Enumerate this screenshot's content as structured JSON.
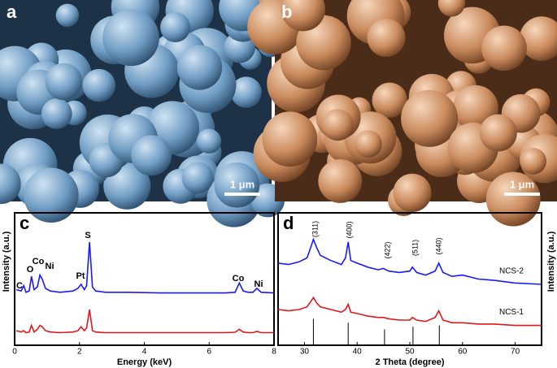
{
  "panels": [
    {
      "label": "a",
      "scale_bar": "1 μm"
    },
    {
      "label": "b",
      "scale_bar": "1 μm"
    }
  ],
  "chart_data": [
    {
      "type": "line",
      "panel_label": "c",
      "xlabel": "Energy (keV)",
      "ylabel": "Intensity (a.u.)",
      "xlim": [
        0,
        8
      ],
      "xticks": [
        0,
        2,
        4,
        6,
        8
      ],
      "ylim": [
        0,
        100
      ],
      "x": [
        0.05,
        0.2,
        0.28,
        0.35,
        0.45,
        0.52,
        0.6,
        0.7,
        0.78,
        0.85,
        0.95,
        1.1,
        1.4,
        1.8,
        1.95,
        2.05,
        2.15,
        2.22,
        2.31,
        2.4,
        2.5,
        2.8,
        3.5,
        4.5,
        5.5,
        6.5,
        6.8,
        6.93,
        7.05,
        7.2,
        7.35,
        7.47,
        7.6,
        8
      ],
      "series": [
        {
          "color": "#1a1aff",
          "values": [
            42,
            41,
            45,
            40,
            41,
            52,
            42,
            44,
            53,
            50,
            43,
            41,
            40,
            41,
            43,
            46,
            42,
            45,
            78,
            44,
            41,
            40,
            40,
            39.5,
            39.5,
            39.5,
            40,
            47,
            41,
            40,
            40,
            43,
            40,
            39.5
          ]
        },
        {
          "color": "#e0181c",
          "values": [
            11,
            10,
            11,
            9.5,
            10,
            15,
            10,
            12,
            15,
            14,
            11,
            10,
            9.5,
            10,
            11,
            14,
            11,
            13,
            27,
            11,
            10,
            9.5,
            9.5,
            9.5,
            9.5,
            9.5,
            9.8,
            12,
            10,
            9.5,
            9.5,
            10.5,
            9.5,
            9.5
          ]
        }
      ],
      "annotations": [
        "C",
        "O",
        "Co",
        "Ni",
        "Pt",
        "S",
        "Co",
        "Ni"
      ]
    },
    {
      "type": "line",
      "panel_label": "d",
      "xlabel": "2 Theta (degree)",
      "ylabel": "Intensity (a.u.)",
      "xlim": [
        25,
        75
      ],
      "xticks": [
        30,
        40,
        50,
        60,
        70
      ],
      "ylim": [
        0,
        100
      ],
      "x": [
        25,
        27,
        29,
        30.5,
        31.2,
        31.7,
        32.3,
        33,
        35,
        37,
        37.8,
        38.3,
        38.8,
        40,
        42,
        44,
        45,
        46,
        48,
        50,
        50.5,
        51.3,
        53,
        54.8,
        55.5,
        56.3,
        58,
        60,
        63,
        66,
        70,
        75
      ],
      "series": [
        {
          "name": "NCS-2",
          "color": "#1a1aff",
          "values": [
            62,
            61,
            63,
            66,
            74,
            80,
            74,
            68,
            64,
            61,
            66,
            78,
            64,
            62,
            59,
            57,
            58,
            56,
            55,
            56,
            59,
            55,
            53,
            56,
            62,
            55,
            52,
            53,
            50,
            49,
            47,
            46
          ]
        },
        {
          "name": "NCS-1",
          "color": "#e0181c",
          "values": [
            27,
            26,
            27,
            29,
            33,
            36,
            32,
            29,
            27,
            25,
            27,
            31,
            25,
            24,
            22,
            21,
            21,
            20,
            19,
            19,
            21,
            19,
            18,
            21,
            26,
            19,
            17,
            17,
            16,
            16,
            15,
            15
          ]
        }
      ],
      "reference": {
        "x": [
          31.7,
          38.3,
          45.2,
          50.6,
          55.6
        ],
        "values": [
          20,
          17,
          12,
          14,
          15
        ]
      },
      "annotations": [
        "(311)",
        "(400)",
        "(422)",
        "(511)",
        "(440)"
      ]
    }
  ]
}
